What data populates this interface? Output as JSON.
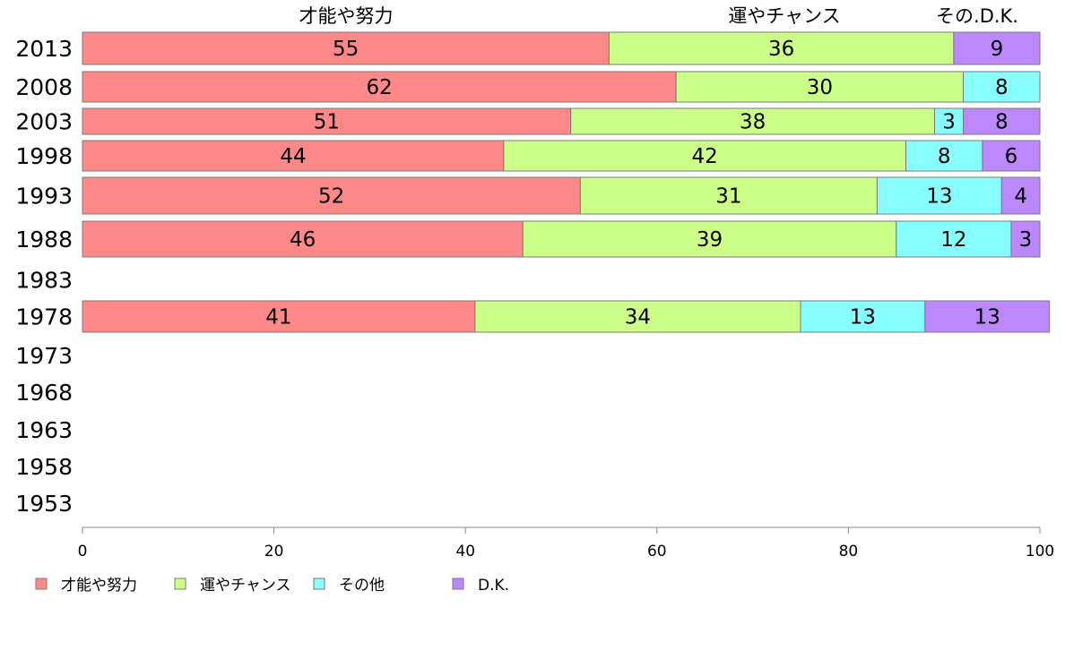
{
  "chart_data": {
    "type": "bar",
    "orientation": "horizontal",
    "stacked": true,
    "categories": [
      "2013",
      "2008",
      "2003",
      "1998",
      "1993",
      "1988",
      "1983",
      "1978",
      "1973",
      "1968",
      "1963",
      "1958",
      "1953"
    ],
    "series": [
      {
        "name": "才能や努力",
        "color": "#ff8888",
        "values": [
          55,
          62,
          51,
          44,
          52,
          46,
          null,
          41,
          null,
          null,
          null,
          null,
          null
        ]
      },
      {
        "name": "運やチャンス",
        "color": "#ccff88",
        "values": [
          36,
          30,
          38,
          42,
          31,
          39,
          null,
          34,
          null,
          null,
          null,
          null,
          null
        ]
      },
      {
        "name": "その他",
        "color": "#88ffff",
        "values": [
          0,
          8,
          3,
          8,
          13,
          12,
          null,
          13,
          null,
          null,
          null,
          null,
          null
        ]
      },
      {
        "name": "D.K.",
        "color": "#bb88ff",
        "values": [
          9,
          0,
          8,
          6,
          4,
          3,
          null,
          13,
          null,
          null,
          null,
          null,
          null
        ]
      }
    ],
    "header_labels": [
      "才能や努力",
      "運やチャンス",
      "その.D.K."
    ],
    "xlim": [
      0,
      100
    ],
    "xticks": [
      0,
      20,
      40,
      60,
      80,
      100
    ],
    "title": "",
    "xlabel": "",
    "ylabel": "",
    "grid": false,
    "legend_position": "bottom-left"
  }
}
